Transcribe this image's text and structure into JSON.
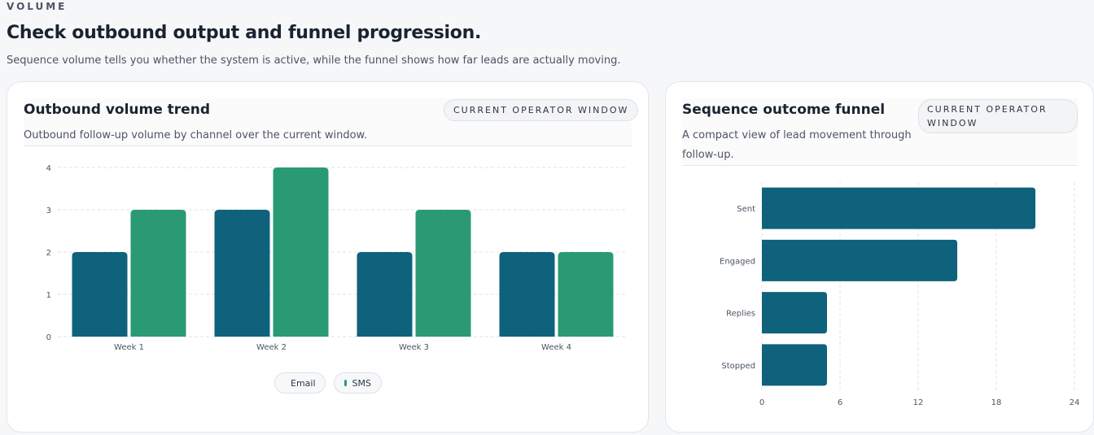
{
  "section": {
    "eyebrow": "VOLUME",
    "title": "Check outbound output and funnel progression.",
    "subtitle": "Sequence volume tells you whether the system is active, while the funnel shows how far leads are actually moving."
  },
  "cards": {
    "volume": {
      "title": "Outbound volume trend",
      "badge": "CURRENT OPERATOR WINDOW",
      "description": "Outbound follow-up volume by channel over the current window."
    },
    "funnel": {
      "title": "Sequence outcome funnel",
      "badge_line1": "CURRENT OPERATOR",
      "badge_line2": "WINDOW",
      "description_line1": "A compact view of lead movement through",
      "description_line2": "follow-up."
    }
  },
  "colors": {
    "email": "#0f627b",
    "sms": "#2a9a74",
    "funnel": "#0f627b"
  },
  "chart_data": [
    {
      "type": "bar",
      "title": "Outbound volume trend",
      "categories": [
        "Week 1",
        "Week 2",
        "Week 3",
        "Week 4"
      ],
      "series": [
        {
          "name": "Email",
          "values": [
            2,
            3,
            2,
            2
          ]
        },
        {
          "name": "SMS",
          "values": [
            3,
            4,
            3,
            2
          ]
        }
      ],
      "ylim": [
        0,
        4
      ],
      "yticks": [
        0,
        1,
        2,
        3,
        4
      ],
      "grid": true,
      "legend": "bottom-center"
    },
    {
      "type": "bar",
      "orientation": "horizontal",
      "title": "Sequence outcome funnel",
      "categories": [
        "Sent",
        "Engaged",
        "Replies",
        "Stopped"
      ],
      "values": [
        21,
        15,
        5,
        5
      ],
      "xlim": [
        0,
        24
      ],
      "xticks": [
        0,
        6,
        12,
        18,
        24
      ],
      "grid": true
    }
  ]
}
